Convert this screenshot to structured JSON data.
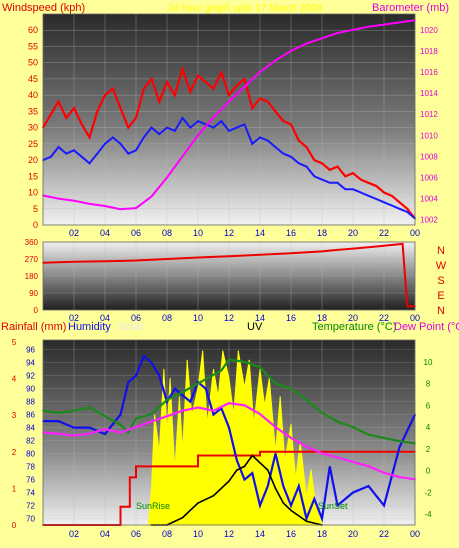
{
  "colors": {
    "background": "#ffff99",
    "wind_gust": "#ff0000",
    "wind_avg": "#1a1aff",
    "barometer": "#ff00ff",
    "wind_dir": "#ee0000",
    "rain": "#ee0000",
    "humidity": "#1010ee",
    "solar": "#ffff00",
    "uv": "#000000",
    "temperature": "#1a8a1a",
    "dewpoint": "#ff22ff",
    "axis_red": "#e00000",
    "axis_magenta": "#e000e0",
    "axis_blue": "#0000cc",
    "axis_green": "#008800"
  },
  "top_labels": {
    "windspeed": "Windspeed (kph)",
    "period": "24 hour graph upto 17 March 2008",
    "barometer": "Barometer (mb)"
  },
  "bottom_labels": {
    "rainfall": "Rainfall (mm)",
    "humidity": "Humidity",
    "solar": "Solar",
    "uv": "UV",
    "temperature": "Temperature (°C)",
    "dewpoint": "Dew Point (°C)",
    "sunrise": "SunRise",
    "sunset": "SunSet"
  },
  "chart_data": [
    {
      "type": "line",
      "x_ticks": [
        "02",
        "04",
        "06",
        "08",
        "10",
        "12",
        "14",
        "16",
        "18",
        "20",
        "22",
        "00"
      ],
      "y_left_ticks": [
        "0",
        "5",
        "10",
        "15",
        "20",
        "25",
        "30",
        "35",
        "40",
        "45",
        "50",
        "55",
        "60"
      ],
      "y_right_ticks": [
        "1002",
        "1004",
        "1006",
        "1008",
        "1010",
        "1012",
        "1014",
        "1016",
        "1018",
        "1020"
      ],
      "y_left_range": [
        0,
        65
      ],
      "y_right_range": [
        1001.5,
        1021.5
      ],
      "series": [
        {
          "name": "Gust",
          "x": [
            0,
            0.5,
            1,
            1.5,
            2,
            2.5,
            3,
            3.5,
            4,
            4.5,
            5,
            5.5,
            6,
            6.5,
            7,
            7.5,
            8,
            8.5,
            9,
            9.5,
            10,
            10.5,
            11,
            11.5,
            12,
            12.5,
            13,
            13.5,
            14,
            14.5,
            15,
            15.5,
            16,
            16.5,
            17,
            17.5,
            18,
            18.5,
            19,
            19.5,
            20,
            20.5,
            21,
            21.5,
            22,
            22.5,
            23,
            23.5,
            24
          ],
          "values": [
            30,
            34,
            38,
            33,
            36,
            31,
            27,
            35,
            40,
            42,
            36,
            30,
            33,
            42,
            45,
            38,
            44,
            40,
            48,
            41,
            46,
            44,
            42,
            47,
            40,
            43,
            45,
            36,
            39,
            38,
            35,
            32,
            31,
            26,
            24,
            20,
            19,
            17,
            18,
            15,
            16,
            14,
            13,
            12,
            10,
            9,
            7,
            5,
            2
          ]
        },
        {
          "name": "Average",
          "x": [
            0,
            0.5,
            1,
            1.5,
            2,
            2.5,
            3,
            3.5,
            4,
            4.5,
            5,
            5.5,
            6,
            6.5,
            7,
            7.5,
            8,
            8.5,
            9,
            9.5,
            10,
            10.5,
            11,
            11.5,
            12,
            12.5,
            13,
            13.5,
            14,
            14.5,
            15,
            15.5,
            16,
            16.5,
            17,
            17.5,
            18,
            18.5,
            19,
            19.5,
            20,
            20.5,
            21,
            21.5,
            22,
            22.5,
            23,
            23.5,
            24
          ],
          "values": [
            20,
            21,
            24,
            22,
            23,
            21,
            19,
            22,
            25,
            27,
            25,
            22,
            23,
            27,
            30,
            28,
            30,
            29,
            33,
            30,
            32,
            31,
            30,
            32,
            29,
            30,
            31,
            25,
            27,
            26,
            24,
            22,
            21,
            19,
            18,
            15,
            14,
            13,
            13,
            11,
            11,
            10,
            9,
            8,
            7,
            6,
            5,
            4,
            2
          ]
        },
        {
          "name": "Barometer",
          "x": [
            0,
            1,
            2,
            3,
            4,
            5,
            6,
            7,
            8,
            9,
            10,
            11,
            12,
            13,
            14,
            15,
            16,
            17,
            18,
            19,
            20,
            21,
            22,
            23,
            24
          ],
          "values": [
            1004.3,
            1004.0,
            1003.8,
            1003.5,
            1003.3,
            1003.0,
            1003.1,
            1004.2,
            1006.0,
            1008.0,
            1010.0,
            1011.7,
            1013.2,
            1014.6,
            1016.0,
            1017.1,
            1018.0,
            1018.7,
            1019.2,
            1019.7,
            1020.0,
            1020.3,
            1020.5,
            1020.7,
            1020.9
          ]
        }
      ]
    },
    {
      "type": "line",
      "x_ticks": [
        "02",
        "04",
        "06",
        "08",
        "10",
        "12",
        "14",
        "16",
        "18",
        "20",
        "22",
        "00"
      ],
      "y_left_ticks": [
        "0",
        "90",
        "180",
        "270",
        "360"
      ],
      "y_right_ticks": [
        "N",
        "W",
        "S",
        "E",
        "N"
      ],
      "y_range": [
        0,
        360
      ],
      "series": [
        {
          "name": "Wind direction",
          "x": [
            0,
            2,
            4,
            6,
            8,
            10,
            12,
            14,
            16,
            18,
            19,
            20,
            22,
            23.2,
            23.5,
            24
          ],
          "values": [
            250,
            255,
            258,
            262,
            270,
            278,
            285,
            292,
            300,
            310,
            318,
            325,
            340,
            350,
            20,
            20
          ]
        }
      ]
    },
    {
      "type": "line",
      "x_ticks": [
        "02",
        "04",
        "06",
        "08",
        "10",
        "12",
        "14",
        "16",
        "18",
        "20",
        "22",
        "00"
      ],
      "y_left_ticks": [
        "0",
        "1",
        "2",
        "3",
        "4",
        "5"
      ],
      "y_humidity_ticks": [
        "70",
        "72",
        "74",
        "76",
        "78",
        "80",
        "82",
        "84",
        "86",
        "88",
        "90",
        "92",
        "94",
        "96"
      ],
      "y_temp_ticks": [
        "-4",
        "-2",
        "0",
        "2",
        "4",
        "6",
        "8",
        "10"
      ],
      "series": [
        {
          "name": "Rainfall",
          "x": [
            0,
            4.3,
            5,
            5.6,
            6,
            7,
            8.2,
            10,
            11,
            12,
            13,
            14,
            15,
            16,
            17,
            18,
            20,
            22,
            24
          ],
          "values": [
            0,
            0,
            0.5,
            1.3,
            1.6,
            1.6,
            1.6,
            1.9,
            1.9,
            1.9,
            1.9,
            2.0,
            2.0,
            2.0,
            2.0,
            2.0,
            2.0,
            2.0,
            2.0
          ]
        },
        {
          "name": "Humidity",
          "x": [
            0,
            1,
            2,
            3,
            4,
            5,
            5.5,
            6,
            6.5,
            7,
            7.5,
            8,
            8.5,
            9,
            9.5,
            10,
            10.5,
            11,
            11.5,
            12,
            12.5,
            13,
            13.5,
            14,
            14.5,
            15,
            15.5,
            16,
            16.5,
            17,
            17.5,
            18,
            18.5,
            19,
            20,
            21,
            22,
            23,
            24
          ],
          "values": [
            85,
            85,
            84,
            84,
            83,
            86,
            91,
            92,
            95,
            94,
            92,
            88,
            90,
            89,
            88,
            91,
            90,
            86,
            87,
            84,
            79,
            76,
            77,
            72,
            75,
            80,
            75,
            72,
            75,
            70,
            73,
            70,
            78,
            72,
            74,
            75,
            72,
            81,
            86
          ]
        },
        {
          "name": "Solar",
          "x": [
            6.8,
            7,
            7.2,
            7.5,
            7.8,
            8,
            8.2,
            8.5,
            8.8,
            9,
            9.3,
            9.6,
            10,
            10.3,
            10.6,
            11,
            11.3,
            11.6,
            12,
            12.3,
            12.6,
            13,
            13.3,
            13.6,
            14,
            14.3,
            14.6,
            15,
            15.3,
            15.6,
            16,
            16.3,
            16.6,
            17,
            17.3,
            17.6,
            18
          ],
          "values": [
            0,
            20,
            60,
            40,
            85,
            50,
            80,
            30,
            70,
            40,
            90,
            60,
            75,
            95,
            55,
            85,
            70,
            95,
            80,
            60,
            95,
            75,
            90,
            55,
            85,
            65,
            80,
            40,
            70,
            35,
            55,
            25,
            45,
            15,
            30,
            10,
            0
          ]
        },
        {
          "name": "UV",
          "x": [
            7,
            8,
            9,
            10,
            11,
            12,
            12.5,
            13,
            13.5,
            14,
            14.5,
            15,
            15.5,
            16,
            17,
            18
          ],
          "values": [
            0,
            0,
            0.2,
            0.6,
            0.8,
            1.2,
            1.5,
            1.6,
            1.9,
            1.7,
            1.5,
            1.0,
            0.6,
            0.4,
            0.1,
            0
          ]
        },
        {
          "name": "Temperature",
          "x": [
            0,
            1,
            2,
            3,
            4,
            5,
            5.5,
            6,
            7,
            8,
            9,
            10,
            11,
            11.5,
            12,
            13,
            14,
            15,
            16,
            17,
            18,
            19,
            20,
            21,
            22,
            23,
            24
          ],
          "values": [
            5.5,
            5.3,
            5.5,
            5.8,
            5.0,
            4.2,
            3.5,
            4.8,
            5.2,
            6.5,
            7.2,
            8.0,
            8.8,
            9.2,
            10.2,
            10.0,
            9.5,
            8.0,
            7.5,
            6.5,
            5.3,
            4.5,
            4.0,
            3.3,
            3.0,
            2.7,
            2.5
          ]
        },
        {
          "name": "Dew Point",
          "x": [
            0,
            1,
            2,
            3,
            4,
            5,
            6,
            7,
            8,
            9,
            10,
            11,
            12,
            13,
            14,
            15,
            16,
            17,
            18,
            19,
            20,
            21,
            22,
            23,
            24
          ],
          "values": [
            3.5,
            3.4,
            3.2,
            3.4,
            3.8,
            3.5,
            4.0,
            4.5,
            5.0,
            5.5,
            5.8,
            5.5,
            6.2,
            6.0,
            5.2,
            4.0,
            3.0,
            2.2,
            1.6,
            1.2,
            0.8,
            0.4,
            -0.2,
            -0.6,
            -0.8
          ]
        }
      ]
    }
  ]
}
